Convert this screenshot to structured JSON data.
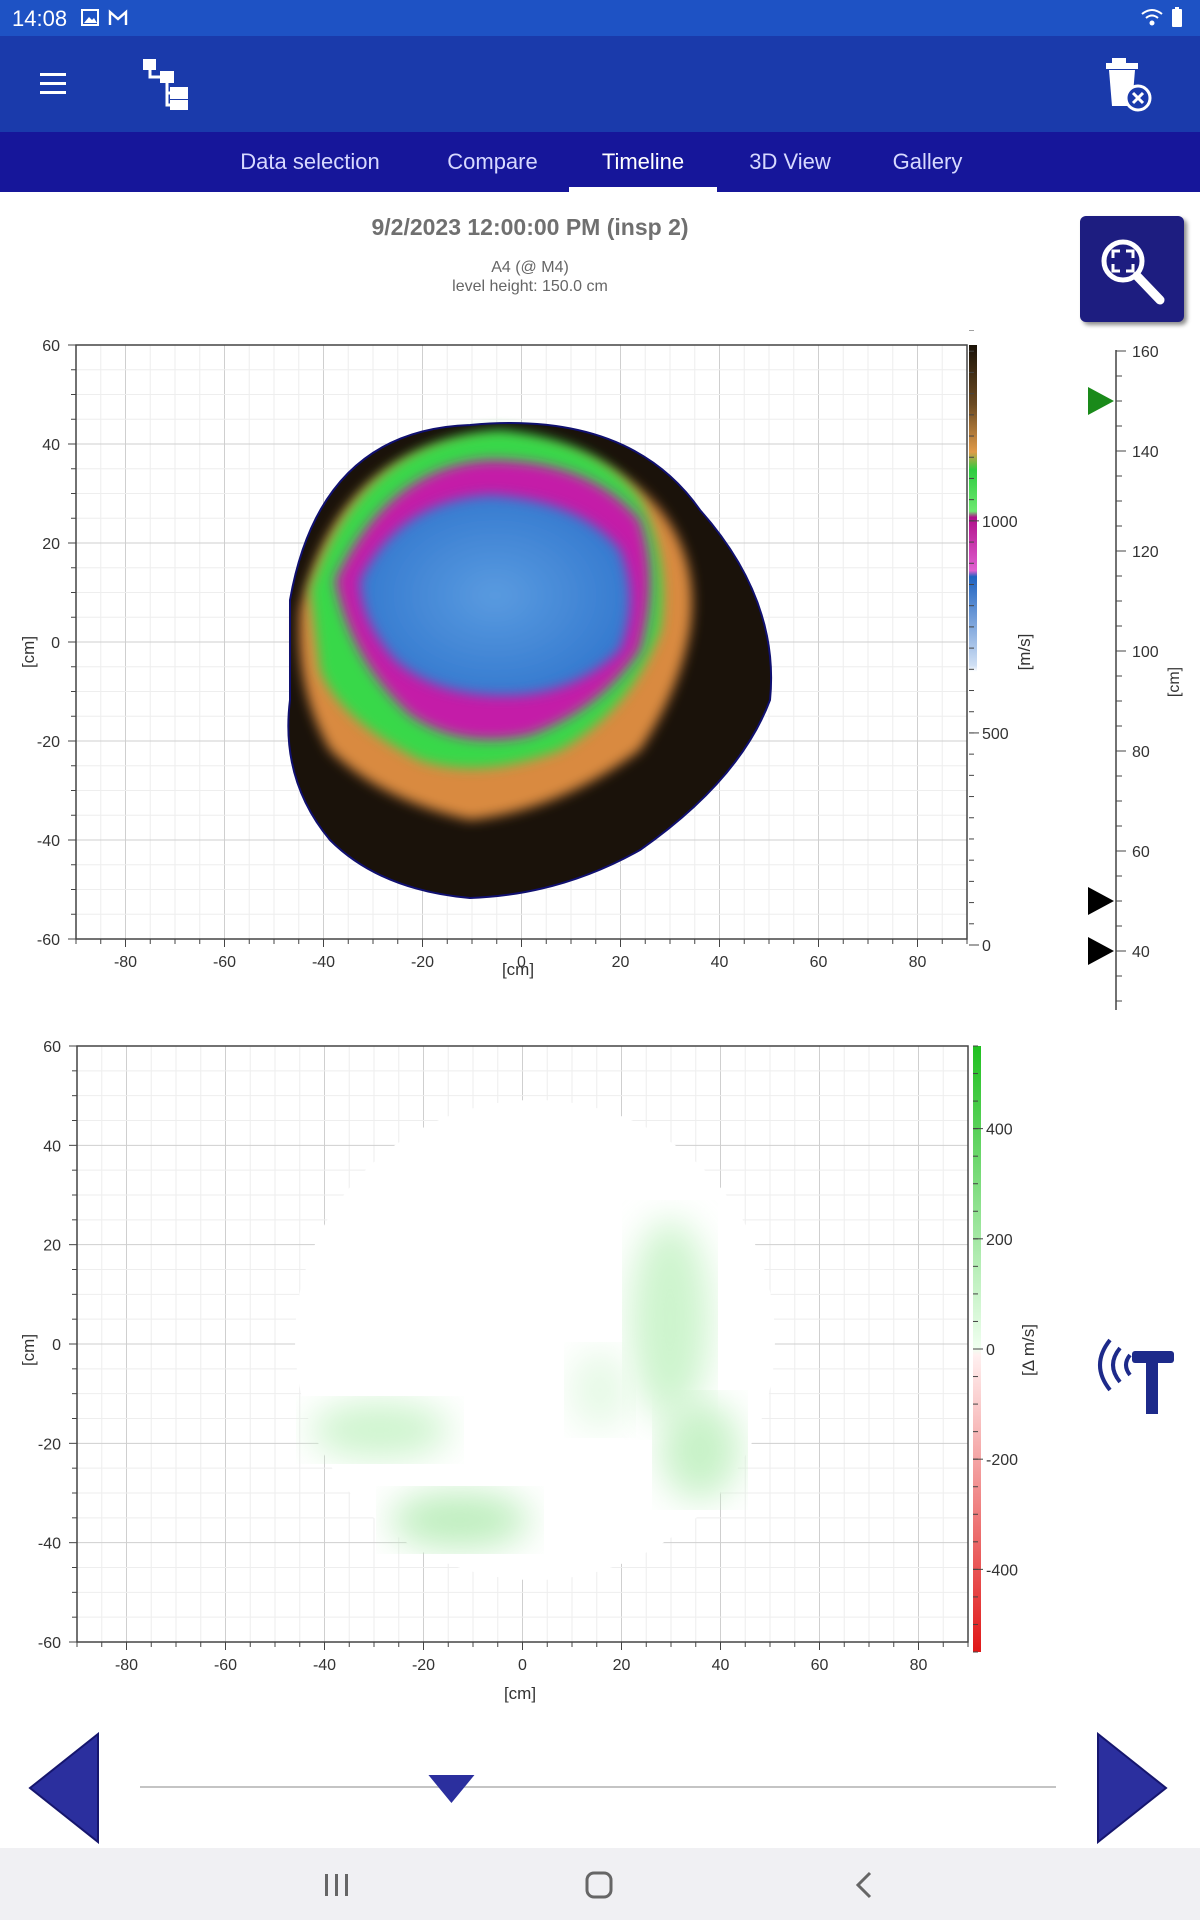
{
  "status_bar": {
    "time": "14:08",
    "icons": [
      "image-icon",
      "gmail-icon"
    ],
    "right_icons": [
      "wifi-icon",
      "battery-icon"
    ]
  },
  "app_bar": {
    "menu_icon": "hamburger-menu-icon",
    "tree_icon": "tree-hierarchy-icon",
    "delete_icon": "trash-delete-icon"
  },
  "tabs": [
    {
      "label": "Data selection",
      "active": false
    },
    {
      "label": "Compare",
      "active": false
    },
    {
      "label": "Timeline",
      "active": true
    },
    {
      "label": "3D View",
      "active": false
    },
    {
      "label": "Gallery",
      "active": false
    }
  ],
  "header": {
    "title": "9/2/2023 12:00:00 PM (insp 2)",
    "sensor": "A4 (@ M4)",
    "level_height": "level height: 150.0 cm"
  },
  "plot_top": {
    "x_ticks": [
      "-80",
      "-60",
      "-40",
      "-20",
      "0",
      "20",
      "40",
      "60",
      "80"
    ],
    "x_label": "[cm]",
    "y_ticks": [
      "60",
      "40",
      "20",
      "0",
      "-20",
      "-40",
      "-60"
    ],
    "y_label": "[cm]",
    "colorbar_ticks": [
      "1000",
      "500",
      "0"
    ],
    "colorbar_label": "[m/s]"
  },
  "height_scale": {
    "ticks": [
      "160",
      "140",
      "120",
      "100",
      "80",
      "60",
      "40"
    ],
    "label": "[cm]",
    "markers": [
      {
        "value": 150,
        "color": "#1a8a1a"
      },
      {
        "value": 50,
        "color": "#000000"
      },
      {
        "value": 40,
        "color": "#000000"
      }
    ]
  },
  "plot_bottom": {
    "x_ticks": [
      "-80",
      "-60",
      "-40",
      "-20",
      "0",
      "20",
      "40",
      "60",
      "80"
    ],
    "x_label": "[cm]",
    "y_ticks": [
      "60",
      "40",
      "20",
      "0",
      "-20",
      "-40",
      "-60"
    ],
    "y_label": "[cm]",
    "colorbar_ticks": [
      "400",
      "200",
      "0",
      "-200",
      "-400"
    ],
    "colorbar_label": "[Δ m/s]"
  },
  "timeline": {
    "prev_icon": "triangle-left-icon",
    "next_icon": "triangle-right-icon",
    "slider_position": 0.34
  },
  "side": {
    "zoom_icon": "zoom-fit-icon",
    "hammer_icon": "sonic-hammer-icon"
  },
  "nav_bar": {
    "icons": [
      "recent-apps-icon",
      "home-icon",
      "back-icon"
    ]
  },
  "colors": {
    "status_bar": "#1e52c4",
    "app_bar": "#1a3aab",
    "tab_bar": "#16169a",
    "accent": "#1d1d80"
  }
}
